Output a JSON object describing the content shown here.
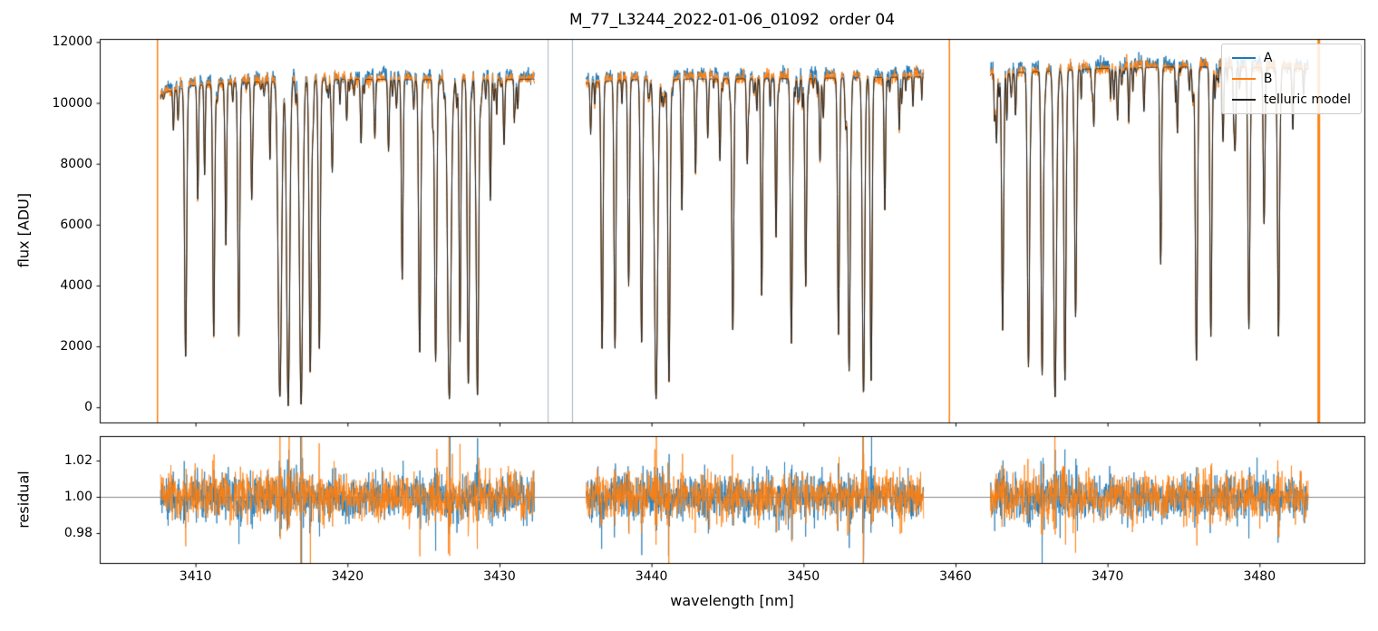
{
  "chart_data": {
    "type": "line",
    "title": "M_77_L3244_2022-01-06_01092  order 04",
    "xlabel": "wavelength [nm]",
    "xlim": [
      3403.7,
      3486.9
    ],
    "xticks": [
      3410,
      3420,
      3430,
      3440,
      3450,
      3460,
      3470,
      3480
    ],
    "xtick_labels": [
      "3410",
      "3420",
      "3430",
      "3440",
      "3450",
      "3460",
      "3470",
      "3480"
    ],
    "panels": [
      {
        "name": "flux",
        "ylabel": "flux [ADU]",
        "ylim": [
          -500,
          12100
        ],
        "yticks": [
          0,
          2000,
          4000,
          6000,
          8000,
          10000,
          12000
        ],
        "ytick_labels": [
          "0",
          "2000",
          "4000",
          "6000",
          "8000",
          "10000",
          "12000"
        ],
        "legend_location": "upper right"
      },
      {
        "name": "residual",
        "ylabel": "residual",
        "ylim": [
          0.9635,
          1.0335
        ],
        "yticks": [
          0.98,
          1.0,
          1.02
        ],
        "ytick_labels": [
          "0.98",
          "1.00",
          "1.02"
        ],
        "hline": 1.0,
        "hline_color": "#888888"
      }
    ],
    "series": [
      {
        "name": "A",
        "color": "#1f77b4"
      },
      {
        "name": "B",
        "color": "#ff7f0e"
      },
      {
        "name": "telluric model",
        "color": "#222222"
      }
    ],
    "segments": [
      [
        3407.7,
        3432.3
      ],
      [
        3435.7,
        3457.9
      ],
      [
        3462.3,
        3483.2
      ]
    ],
    "continuum": [
      [
        3407.7,
        10300
      ],
      [
        3409.5,
        10550
      ],
      [
        3412.0,
        10650
      ],
      [
        3416.0,
        10720
      ],
      [
        3420.0,
        10780
      ],
      [
        3425.0,
        10760
      ],
      [
        3432.3,
        10780
      ],
      [
        3435.7,
        10650
      ],
      [
        3438.0,
        10760
      ],
      [
        3444.0,
        10790
      ],
      [
        3450.0,
        10800
      ],
      [
        3457.9,
        10860
      ],
      [
        3462.3,
        10950
      ],
      [
        3465.0,
        11020
      ],
      [
        3469.0,
        11120
      ],
      [
        3474.0,
        11180
      ],
      [
        3479.0,
        11180
      ],
      [
        3483.2,
        11120
      ]
    ],
    "lines": [
      [
        3408.55,
        0.13,
        0.06
      ],
      [
        3409.35,
        0.85,
        0.1
      ],
      [
        3410.15,
        0.36,
        0.07
      ],
      [
        3410.6,
        0.28,
        0.06
      ],
      [
        3411.2,
        0.78,
        0.09
      ],
      [
        3412.0,
        0.5,
        0.07
      ],
      [
        3412.85,
        0.79,
        0.09
      ],
      [
        3413.7,
        0.36,
        0.07
      ],
      [
        3414.9,
        0.24,
        0.06
      ],
      [
        3415.55,
        0.97,
        0.16
      ],
      [
        3416.1,
        0.995,
        0.14
      ],
      [
        3416.95,
        0.995,
        0.15
      ],
      [
        3417.55,
        0.9,
        0.1
      ],
      [
        3418.15,
        0.83,
        0.09
      ],
      [
        3419.0,
        0.28,
        0.07
      ],
      [
        3419.95,
        0.13,
        0.06
      ],
      [
        3420.9,
        0.17,
        0.07
      ],
      [
        3421.8,
        0.18,
        0.07
      ],
      [
        3422.7,
        0.22,
        0.07
      ],
      [
        3423.6,
        0.61,
        0.08
      ],
      [
        3424.75,
        0.84,
        0.1
      ],
      [
        3425.8,
        0.86,
        0.1
      ],
      [
        3426.7,
        0.975,
        0.16
      ],
      [
        3427.4,
        0.8,
        0.08
      ],
      [
        3427.95,
        0.93,
        0.1
      ],
      [
        3428.55,
        0.97,
        0.11
      ],
      [
        3429.4,
        0.37,
        0.07
      ],
      [
        3430.3,
        0.2,
        0.07
      ],
      [
        3431.2,
        0.09,
        0.06
      ],
      [
        3436.0,
        0.16,
        0.06
      ],
      [
        3436.75,
        0.83,
        0.09
      ],
      [
        3437.6,
        0.82,
        0.09
      ],
      [
        3438.5,
        0.63,
        0.08
      ],
      [
        3439.35,
        0.81,
        0.09
      ],
      [
        3440.3,
        0.975,
        0.15
      ],
      [
        3441.15,
        0.93,
        0.1
      ],
      [
        3442.0,
        0.4,
        0.07
      ],
      [
        3442.9,
        0.26,
        0.07
      ],
      [
        3443.7,
        0.18,
        0.06
      ],
      [
        3444.5,
        0.25,
        0.07
      ],
      [
        3445.35,
        0.77,
        0.09
      ],
      [
        3446.3,
        0.26,
        0.07
      ],
      [
        3447.25,
        0.67,
        0.08
      ],
      [
        3448.2,
        0.46,
        0.07
      ],
      [
        3449.2,
        0.8,
        0.09
      ],
      [
        3450.15,
        0.63,
        0.08
      ],
      [
        3451.1,
        0.19,
        0.06
      ],
      [
        3452.3,
        0.78,
        0.09
      ],
      [
        3453.0,
        0.89,
        0.1
      ],
      [
        3453.95,
        0.95,
        0.11
      ],
      [
        3454.45,
        0.93,
        0.09
      ],
      [
        3455.35,
        0.41,
        0.07
      ],
      [
        3456.3,
        0.16,
        0.06
      ],
      [
        3457.2,
        0.09,
        0.05
      ],
      [
        3462.7,
        0.2,
        0.06
      ],
      [
        3463.1,
        0.77,
        0.09
      ],
      [
        3463.95,
        0.13,
        0.06
      ],
      [
        3464.8,
        0.88,
        0.1
      ],
      [
        3465.7,
        0.9,
        0.1
      ],
      [
        3466.55,
        0.975,
        0.13
      ],
      [
        3467.2,
        0.92,
        0.1
      ],
      [
        3467.9,
        0.72,
        0.09
      ],
      [
        3469.1,
        0.17,
        0.06
      ],
      [
        3470.2,
        0.09,
        0.05
      ],
      [
        3471.4,
        0.16,
        0.06
      ],
      [
        3472.4,
        0.13,
        0.06
      ],
      [
        3473.5,
        0.58,
        0.08
      ],
      [
        3474.6,
        0.17,
        0.06
      ],
      [
        3475.85,
        0.87,
        0.1
      ],
      [
        3476.8,
        0.79,
        0.09
      ],
      [
        3477.6,
        0.22,
        0.07
      ],
      [
        3478.4,
        0.23,
        0.07
      ],
      [
        3479.3,
        0.77,
        0.09
      ],
      [
        3480.3,
        0.46,
        0.08
      ],
      [
        3481.25,
        0.8,
        0.09
      ],
      [
        3482.2,
        0.13,
        0.06
      ],
      [
        3482.9,
        0.08,
        0.05
      ]
    ],
    "spikes": [
      {
        "x": 3407.5,
        "color": "#ff7f0e",
        "w": 1.5
      },
      {
        "x": 3433.2,
        "color": "#a9b4bd",
        "w": 1
      },
      {
        "x": 3434.8,
        "color": "#9fb3c4",
        "w": 1
      },
      {
        "x": 3459.6,
        "color": "#ff7f0e",
        "w": 1.5
      },
      {
        "x": 3483.9,
        "color": "#ff7f0e",
        "w": 3
      }
    ],
    "noise": {
      "seed": 7,
      "flux_rel": 0.009,
      "residual": 0.0062
    }
  }
}
